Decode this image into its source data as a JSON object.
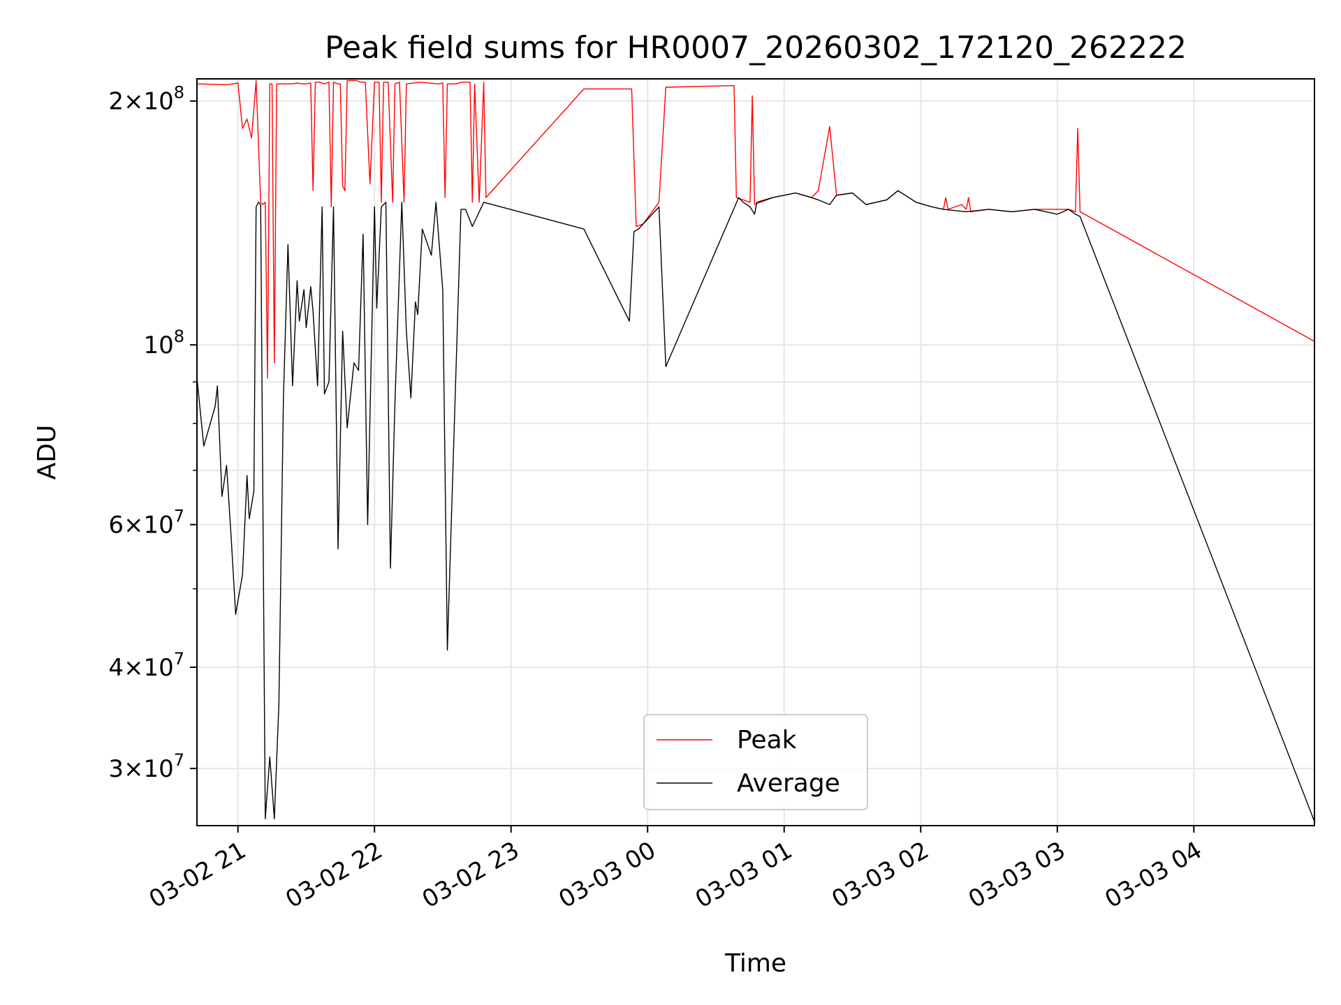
{
  "chart_data": {
    "type": "line",
    "title": "Peak field sums for HR0007_20260302_172120_262222",
    "xlabel": "Time",
    "ylabel": "ADU",
    "yscale": "log",
    "xlim": [
      "03-02 20:42",
      "03-03 04:53"
    ],
    "ylim": [
      25500000,
      213000000
    ],
    "grid": true,
    "legend": "lower-center",
    "x_ticks": [
      "03-02 21",
      "03-02 22",
      "03-02 23",
      "03-03 00",
      "03-03 01",
      "03-03 02",
      "03-03 03",
      "03-03 04"
    ],
    "x_tick_times": [
      "03-02 21:00",
      "03-02 22:00",
      "03-02 23:00",
      "03-03 00:00",
      "03-03 01:00",
      "03-03 02:00",
      "03-03 03:00",
      "03-03 04:00"
    ],
    "y_ticks": [
      {
        "value": 200000000,
        "label_base": "2×10",
        "label_exp": "8"
      },
      {
        "value": 100000000,
        "label_base": "10",
        "label_exp": "8"
      },
      {
        "value": 60000000,
        "label_base": "6×10",
        "label_exp": "7"
      },
      {
        "value": 40000000,
        "label_base": "4×10",
        "label_exp": "7"
      },
      {
        "value": 30000000,
        "label_base": "3×10",
        "label_exp": "7"
      }
    ],
    "y_minor_grid": [
      90000000,
      80000000,
      70000000,
      50000000
    ],
    "series": [
      {
        "name": "Peak",
        "color": "#ff0000",
        "points": [
          [
            "03-02 20:42",
            210000000
          ],
          [
            "03-02 20:55",
            209500000
          ],
          [
            "03-02 21:00",
            210500000
          ],
          [
            "03-02 21:02",
            185000000
          ],
          [
            "03-02 21:04",
            190000000
          ],
          [
            "03-02 21:06",
            180000000
          ],
          [
            "03-02 21:08",
            212000000
          ],
          [
            "03-02 21:10",
            150000000
          ],
          [
            "03-02 21:11",
            149000000
          ],
          [
            "03-02 21:12",
            150000000
          ],
          [
            "03-02 21:13",
            91000000
          ],
          [
            "03-02 21:14",
            210000000
          ],
          [
            "03-02 21:15",
            210000000
          ],
          [
            "03-02 21:16",
            95000000
          ],
          [
            "03-02 21:17",
            210000000
          ],
          [
            "03-02 21:20",
            210000000
          ],
          [
            "03-02 21:22",
            210000000
          ],
          [
            "03-02 21:24",
            210000000
          ],
          [
            "03-02 21:26",
            210500000
          ],
          [
            "03-02 21:28",
            210000000
          ],
          [
            "03-02 21:30",
            210000000
          ],
          [
            "03-02 21:32",
            210500000
          ],
          [
            "03-02 21:33",
            155000000
          ],
          [
            "03-02 21:34",
            211000000
          ],
          [
            "03-02 21:36",
            211000000
          ],
          [
            "03-02 21:38",
            210000000
          ],
          [
            "03-02 21:40",
            211000000
          ],
          [
            "03-02 21:41",
            148000000
          ],
          [
            "03-02 21:42",
            211000000
          ],
          [
            "03-02 21:44",
            210000000
          ],
          [
            "03-02 21:45",
            210000000
          ],
          [
            "03-02 21:46",
            157000000
          ],
          [
            "03-02 21:47",
            155000000
          ],
          [
            "03-02 21:48",
            212000000
          ],
          [
            "03-02 21:52",
            212000000
          ],
          [
            "03-02 21:54",
            211000000
          ],
          [
            "03-02 21:56",
            211000000
          ],
          [
            "03-02 21:58",
            158000000
          ],
          [
            "03-02 22:00",
            211000000
          ],
          [
            "03-02 22:02",
            211000000
          ],
          [
            "03-02 22:03",
            150000000
          ],
          [
            "03-02 22:04",
            211000000
          ],
          [
            "03-02 22:06",
            211000000
          ],
          [
            "03-02 22:08",
            150000000
          ],
          [
            "03-02 22:09",
            210000000
          ],
          [
            "03-02 22:11",
            211000000
          ],
          [
            "03-02 22:13",
            150000000
          ],
          [
            "03-02 22:14",
            210000000
          ],
          [
            "03-02 22:20",
            211000000
          ],
          [
            "03-02 22:28",
            210000000
          ],
          [
            "03-02 22:30",
            210500000
          ],
          [
            "03-02 22:31",
            152000000
          ],
          [
            "03-02 22:32",
            210000000
          ],
          [
            "03-02 22:36",
            210000000
          ],
          [
            "03-02 22:38",
            211000000
          ],
          [
            "03-02 22:42",
            211000000
          ],
          [
            "03-02 22:43",
            150000000
          ],
          [
            "03-02 22:44",
            210000000
          ],
          [
            "03-02 22:46",
            150000000
          ],
          [
            "03-02 22:48",
            211000000
          ],
          [
            "03-02 22:49",
            152000000
          ],
          [
            "03-02 23:32",
            207000000
          ],
          [
            "03-02 23:53",
            207000000
          ],
          [
            "03-02 23:55",
            140000000
          ],
          [
            "03-02 23:58",
            141000000
          ],
          [
            "03-03 00:05",
            150000000
          ],
          [
            "03-03 00:08",
            208000000
          ],
          [
            "03-03 00:38",
            209000000
          ],
          [
            "03-03 00:39",
            152000000
          ],
          [
            "03-03 00:42",
            151000000
          ],
          [
            "03-03 00:45",
            150000000
          ],
          [
            "03-03 00:46",
            203000000
          ],
          [
            "03-03 00:47",
            149000000
          ],
          [
            "03-03 00:55",
            152000000
          ],
          [
            "03-03 01:05",
            154000000
          ],
          [
            "03-03 01:12",
            152000000
          ],
          [
            "03-03 01:15",
            155000000
          ],
          [
            "03-03 01:20",
            186000000
          ],
          [
            "03-03 01:23",
            153000000
          ],
          [
            "03-03 01:30",
            154000000
          ],
          [
            "03-03 01:36",
            149000000
          ],
          [
            "03-03 01:45",
            151000000
          ],
          [
            "03-03 01:50",
            155000000
          ],
          [
            "03-03 01:58",
            150000000
          ],
          [
            "03-03 02:05",
            148000000
          ],
          [
            "03-03 02:10",
            147000000
          ],
          [
            "03-03 02:11",
            152000000
          ],
          [
            "03-03 02:12",
            147000000
          ],
          [
            "03-03 02:18",
            149000000
          ],
          [
            "03-03 02:20",
            147000000
          ],
          [
            "03-03 02:21",
            152000000
          ],
          [
            "03-03 02:22",
            146000000
          ],
          [
            "03-03 02:30",
            147000000
          ],
          [
            "03-03 02:40",
            146000000
          ],
          [
            "03-03 02:50",
            147000000
          ],
          [
            "03-03 03:00",
            147000000
          ],
          [
            "03-03 03:05",
            147000000
          ],
          [
            "03-03 03:08",
            146000000
          ],
          [
            "03-03 03:09",
            185000000
          ],
          [
            "03-03 03:10",
            146000000
          ],
          [
            "03-03 04:53",
            101000000
          ]
        ]
      },
      {
        "name": "Average",
        "color": "#000000",
        "points": [
          [
            "03-02 20:42",
            91000000
          ],
          [
            "03-02 20:45",
            75000000
          ],
          [
            "03-02 20:50",
            84000000
          ],
          [
            "03-02 20:51",
            89000000
          ],
          [
            "03-02 20:53",
            65000000
          ],
          [
            "03-02 20:55",
            71000000
          ],
          [
            "03-02 20:57",
            58000000
          ],
          [
            "03-02 20:59",
            46500000
          ],
          [
            "03-02 21:02",
            52000000
          ],
          [
            "03-02 21:04",
            69000000
          ],
          [
            "03-02 21:05",
            61000000
          ],
          [
            "03-02 21:07",
            66000000
          ],
          [
            "03-02 21:08",
            148000000
          ],
          [
            "03-02 21:09",
            150000000
          ],
          [
            "03-02 21:10",
            149000000
          ],
          [
            "03-02 21:12",
            26000000
          ],
          [
            "03-02 21:14",
            31000000
          ],
          [
            "03-02 21:16",
            26000000
          ],
          [
            "03-02 21:18",
            36000000
          ],
          [
            "03-02 21:20",
            86000000
          ],
          [
            "03-02 21:22",
            133000000
          ],
          [
            "03-02 21:24",
            89000000
          ],
          [
            "03-02 21:26",
            120000000
          ],
          [
            "03-02 21:27",
            107000000
          ],
          [
            "03-02 21:29",
            117000000
          ],
          [
            "03-02 21:30",
            105000000
          ],
          [
            "03-02 21:32",
            118000000
          ],
          [
            "03-02 21:33",
            110000000
          ],
          [
            "03-02 21:35",
            89000000
          ],
          [
            "03-02 21:37",
            148000000
          ],
          [
            "03-02 21:38",
            87000000
          ],
          [
            "03-02 21:40",
            90000000
          ],
          [
            "03-02 21:42",
            148000000
          ],
          [
            "03-02 21:44",
            56000000
          ],
          [
            "03-02 21:46",
            104000000
          ],
          [
            "03-02 21:48",
            79000000
          ],
          [
            "03-02 21:51",
            95000000
          ],
          [
            "03-02 21:53",
            93000000
          ],
          [
            "03-02 21:55",
            137000000
          ],
          [
            "03-02 21:57",
            60000000
          ],
          [
            "03-02 22:00",
            148000000
          ],
          [
            "03-02 22:01",
            111000000
          ],
          [
            "03-02 22:03",
            148000000
          ],
          [
            "03-02 22:05",
            150000000
          ],
          [
            "03-02 22:07",
            53000000
          ],
          [
            "03-02 22:09",
            85000000
          ],
          [
            "03-02 22:10",
            103000000
          ],
          [
            "03-02 22:12",
            150000000
          ],
          [
            "03-02 22:14",
            104000000
          ],
          [
            "03-02 22:16",
            86000000
          ],
          [
            "03-02 22:18",
            113000000
          ],
          [
            "03-02 22:19",
            109000000
          ],
          [
            "03-02 22:21",
            139000000
          ],
          [
            "03-02 22:25",
            129000000
          ],
          [
            "03-02 22:27",
            150000000
          ],
          [
            "03-02 22:30",
            117000000
          ],
          [
            "03-02 22:32",
            42000000
          ],
          [
            "03-02 22:38",
            147000000
          ],
          [
            "03-02 22:40",
            147000000
          ],
          [
            "03-02 22:43",
            140000000
          ],
          [
            "03-02 22:48",
            150000000
          ],
          [
            "03-02 23:32",
            139000000
          ],
          [
            "03-02 23:52",
            107000000
          ],
          [
            "03-02 23:54",
            138000000
          ],
          [
            "03-02 23:56",
            139000000
          ],
          [
            "03-02 23:58",
            141000000
          ],
          [
            "03-03 00:05",
            148000000
          ],
          [
            "03-03 00:08",
            94000000
          ],
          [
            "03-03 00:40",
            152000000
          ],
          [
            "03-03 00:42",
            150000000
          ],
          [
            "03-03 00:45",
            148000000
          ],
          [
            "03-03 00:47",
            145000000
          ],
          [
            "03-03 00:48",
            150000000
          ],
          [
            "03-03 00:55",
            152000000
          ],
          [
            "03-03 01:05",
            154000000
          ],
          [
            "03-03 01:12",
            152000000
          ],
          [
            "03-03 01:15",
            151000000
          ],
          [
            "03-03 01:20",
            149000000
          ],
          [
            "03-03 01:23",
            153000000
          ],
          [
            "03-03 01:30",
            154000000
          ],
          [
            "03-03 01:36",
            149000000
          ],
          [
            "03-03 01:45",
            151000000
          ],
          [
            "03-03 01:50",
            155000000
          ],
          [
            "03-03 01:58",
            150000000
          ],
          [
            "03-03 02:05",
            148000000
          ],
          [
            "03-03 02:10",
            147000000
          ],
          [
            "03-03 02:20",
            146000000
          ],
          [
            "03-03 02:30",
            147000000
          ],
          [
            "03-03 02:40",
            146000000
          ],
          [
            "03-03 02:50",
            147000000
          ],
          [
            "03-03 03:00",
            145000000
          ],
          [
            "03-03 03:05",
            147000000
          ],
          [
            "03-03 03:08",
            145000000
          ],
          [
            "03-03 03:10",
            144000000
          ],
          [
            "03-03 04:53",
            25800000
          ]
        ]
      }
    ]
  }
}
